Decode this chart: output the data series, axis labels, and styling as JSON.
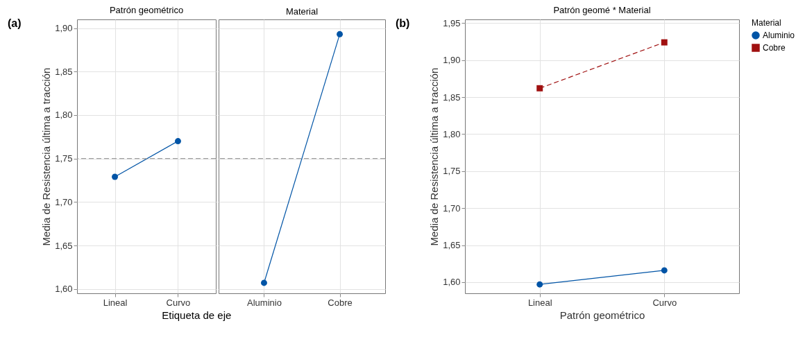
{
  "chart_data": [
    {
      "type": "line",
      "title": "Patrón geométrico",
      "ylabel": "Media de Resistencia última a tracción",
      "xlabel": "Etiqueta de eje",
      "annotations": [
        "(a)"
      ],
      "categories": [
        "Lineal",
        "Curvo"
      ],
      "values": [
        1.729,
        1.77
      ],
      "color": "#0054a6",
      "marker": "circle",
      "line_style": "solid",
      "ylim": [
        1.595,
        1.91
      ],
      "yticks": [
        {
          "value": 1.6,
          "label": "1,60"
        },
        {
          "value": 1.65,
          "label": "1,65"
        },
        {
          "value": 1.7,
          "label": "1,70"
        },
        {
          "value": 1.75,
          "label": "1,75"
        },
        {
          "value": 1.8,
          "label": "1,80"
        },
        {
          "value": 1.85,
          "label": "1,85"
        },
        {
          "value": 1.9,
          "label": "1,90"
        }
      ],
      "grid": true,
      "ref_lines": [
        {
          "axis": "y",
          "value": 1.75,
          "color": "#a0a0a0",
          "line_style": "dashed"
        }
      ]
    },
    {
      "type": "line",
      "title": "Material",
      "categories": [
        "Aluminio",
        "Cobre"
      ],
      "values": [
        1.607,
        1.893
      ],
      "color": "#0054a6",
      "marker": "circle",
      "line_style": "solid",
      "ylim": [
        1.595,
        1.91
      ],
      "yticks": [
        1.6,
        1.65,
        1.7,
        1.75,
        1.8,
        1.85,
        1.9
      ],
      "tick_labels": "x",
      "grid": true,
      "ref_lines": [
        {
          "axis": "y",
          "value": 1.75,
          "color": "#a0a0a0",
          "line_style": "dashed"
        }
      ]
    },
    {
      "type": "line",
      "title": "Patrón geomé * Material",
      "ylabel": "Media de Resistencia última a tracción",
      "xlabel": "Patrón geométrico",
      "annotations": [
        "(b)"
      ],
      "legend_title": "Material",
      "legend": "top right",
      "categories": [
        "Lineal",
        "Curvo"
      ],
      "grid": true,
      "ylim": [
        1.585,
        1.955
      ],
      "yticks": [
        {
          "value": 1.6,
          "label": "1,60"
        },
        {
          "value": 1.65,
          "label": "1,65"
        },
        {
          "value": 1.7,
          "label": "1,70"
        },
        {
          "value": 1.75,
          "label": "1,75"
        },
        {
          "value": 1.8,
          "label": "1,80"
        },
        {
          "value": 1.85,
          "label": "1,85"
        },
        {
          "value": 1.9,
          "label": "1,90"
        },
        {
          "value": 1.95,
          "label": "1,95"
        }
      ],
      "series": [
        {
          "name": "Aluminio",
          "color": "#0054a6",
          "values": [
            1.597,
            1.616
          ],
          "marker": "circle",
          "line_style": "solid"
        },
        {
          "name": "Cobre",
          "color": "#a01010",
          "values": [
            1.862,
            1.924
          ],
          "marker": "square",
          "line_style": "dashed"
        }
      ]
    }
  ]
}
